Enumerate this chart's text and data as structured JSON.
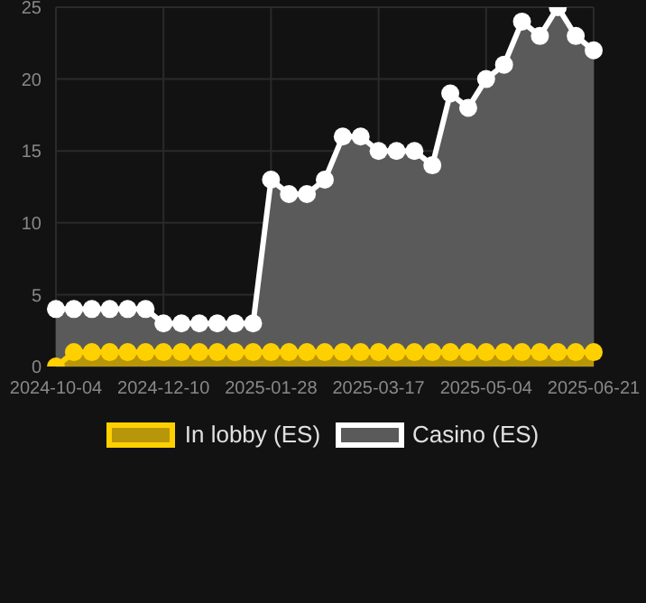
{
  "chart_data": {
    "type": "area",
    "categories": [
      "2024-10-04",
      null,
      null,
      null,
      null,
      null,
      "2024-12-10",
      null,
      null,
      null,
      null,
      null,
      "2025-01-28",
      null,
      null,
      null,
      null,
      null,
      "2025-03-17",
      null,
      null,
      null,
      null,
      null,
      "2025-05-04",
      null,
      null,
      null,
      null,
      null,
      "2025-06-21"
    ],
    "series": [
      {
        "name": "In lobby (ES)",
        "color": "#ffd000",
        "values": [
          0,
          1,
          1,
          1,
          1,
          1,
          1,
          1,
          1,
          1,
          1,
          1,
          1,
          1,
          1,
          1,
          1,
          1,
          1,
          1,
          1,
          1,
          1,
          1,
          1,
          1,
          1,
          1,
          1,
          1,
          1
        ]
      },
      {
        "name": "Casino (ES)",
        "color": "#ffffff",
        "values": [
          4,
          4,
          4,
          4,
          4,
          4,
          3,
          3,
          3,
          3,
          3,
          3,
          13,
          12,
          12,
          13,
          16,
          16,
          15,
          15,
          15,
          14,
          19,
          18,
          20,
          21,
          24,
          23,
          25,
          23,
          22
        ]
      }
    ],
    "ylim": [
      0,
      25
    ],
    "yticks": [
      0,
      5,
      10,
      15,
      20,
      25
    ],
    "grid": true,
    "legend": "bottom",
    "marker": "circle"
  }
}
